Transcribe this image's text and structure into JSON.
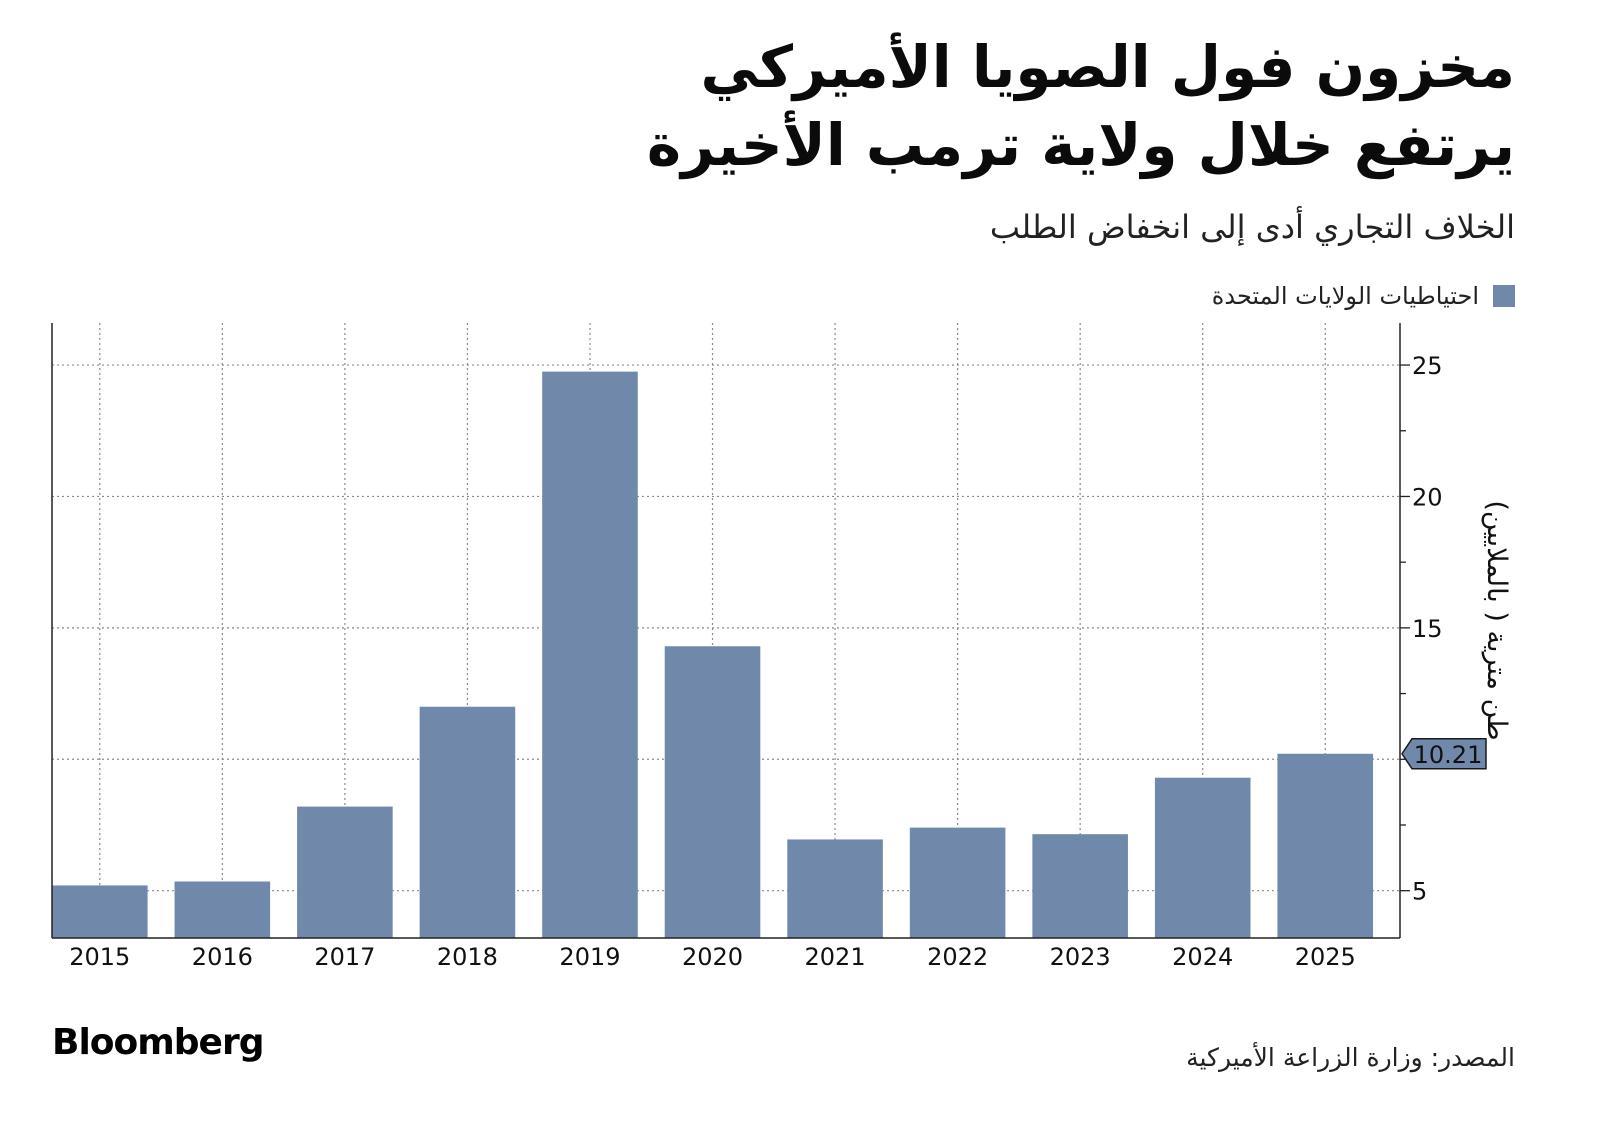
{
  "header": {
    "title_line1": "مخزون فول الصويا الأميركي",
    "title_line2": "يرتفع خلال ولاية ترمب الأخيرة",
    "subtitle": "الخلاف التجاري أدى إلى انخفاض الطلب"
  },
  "legend": {
    "label": "احتياطيات الولايات المتحدة",
    "color": "#7089aa"
  },
  "footer": {
    "source": "المصدر: وزارة الزراعة الأميركية",
    "brand": "Bloomberg"
  },
  "chart_data": {
    "type": "bar",
    "title": "مخزون فول الصويا الأميركي يرتفع خلال ولاية ترمب الأخيرة",
    "ylabel": "طن مترية ( بالملايين)",
    "xlabel": "",
    "categories": [
      "2015",
      "2016",
      "2017",
      "2018",
      "2019",
      "2020",
      "2021",
      "2022",
      "2023",
      "2024",
      "2025"
    ],
    "series": [
      {
        "name": "احتياطيات الولايات المتحدة",
        "values": [
          5.2,
          5.35,
          8.2,
          12.0,
          24.75,
          14.3,
          6.95,
          7.4,
          7.15,
          9.3,
          10.21
        ]
      }
    ],
    "ylim": [
      3.2,
      26.6
    ],
    "yticks": [
      5,
      10,
      15,
      20,
      25
    ],
    "ytick_labels": [
      "5",
      "",
      "15",
      "20",
      "25"
    ],
    "last_value_label": "10.21",
    "grid": true,
    "y_axis_side": "right",
    "legend_position": "top-right",
    "bar_color": "#7089aa"
  }
}
